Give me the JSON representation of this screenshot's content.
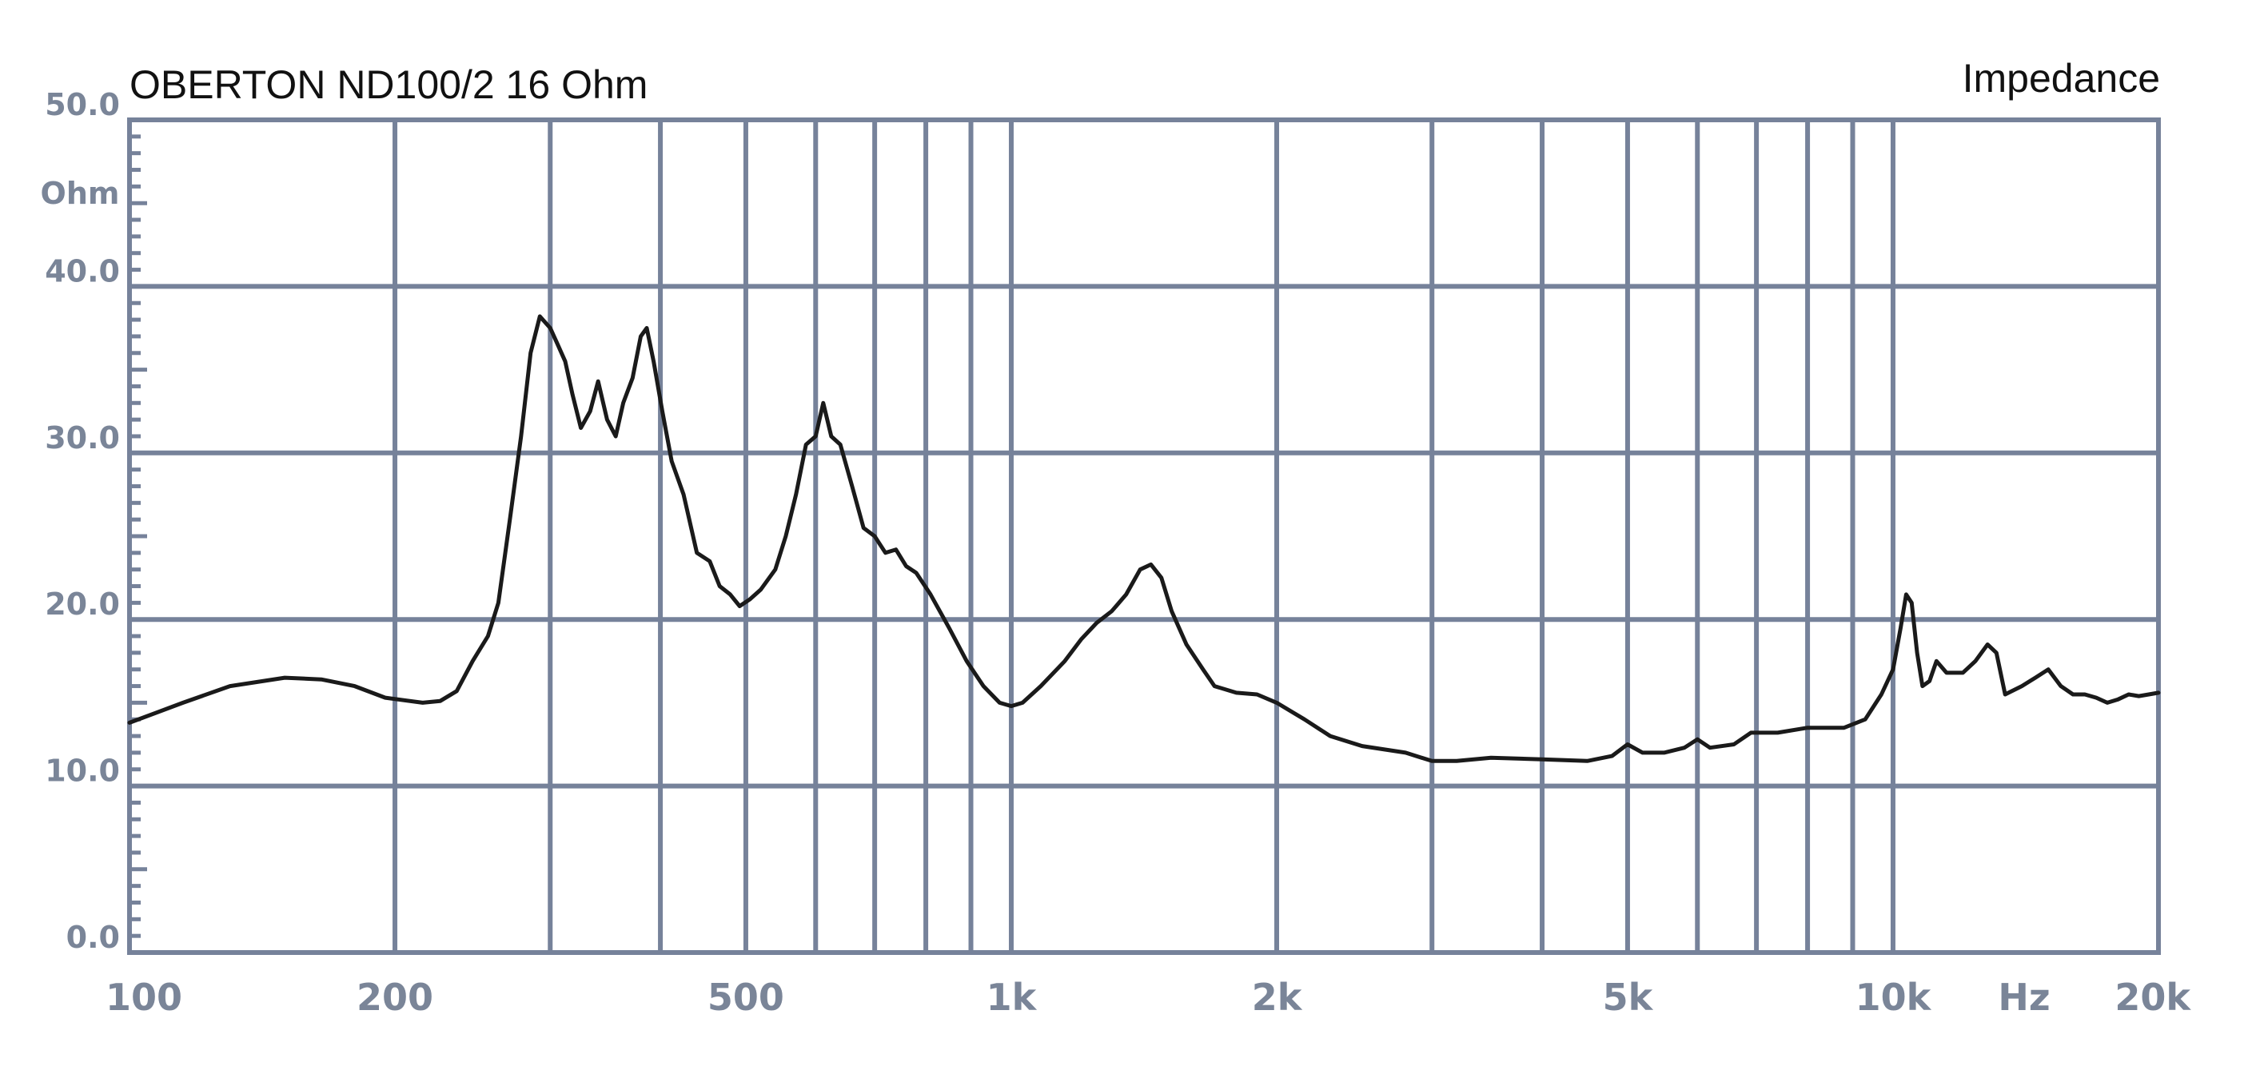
{
  "chart_data": {
    "type": "line",
    "title": "OBERTON  ND100/2  16 Ohm",
    "subtitle": "Impedance",
    "ylabel": "Ohm",
    "xlabel": "Hz",
    "x_scale": "log",
    "xlim": [
      100,
      20000
    ],
    "ylim": [
      0,
      50
    ],
    "grid": true,
    "y_ticks": [
      {
        "value": 0,
        "label": "0.0"
      },
      {
        "value": 10,
        "label": "10.0"
      },
      {
        "value": 20,
        "label": "20.0"
      },
      {
        "value": 30,
        "label": "30.0"
      },
      {
        "value": 40,
        "label": "40.0"
      },
      {
        "value": 50,
        "label": "50.0"
      }
    ],
    "x_grid": [
      200,
      300,
      400,
      500,
      600,
      700,
      800,
      900,
      1000,
      2000,
      3000,
      4000,
      5000,
      6000,
      7000,
      8000,
      9000,
      10000,
      20000
    ],
    "x_ticks": [
      {
        "value": 100,
        "label": "100"
      },
      {
        "value": 200,
        "label": "200"
      },
      {
        "value": 500,
        "label": "500"
      },
      {
        "value": 1000,
        "label": "1k"
      },
      {
        "value": 2000,
        "label": "2k"
      },
      {
        "value": 5000,
        "label": "5k"
      },
      {
        "value": 10000,
        "label": "10k"
      },
      {
        "value": 20000,
        "label": "20k"
      }
    ],
    "series": [
      {
        "color": "#1a1a1a",
        "points": [
          [
            100,
            13.8
          ],
          [
            115,
            15.0
          ],
          [
            130,
            16.0
          ],
          [
            150,
            16.5
          ],
          [
            165,
            16.4
          ],
          [
            180,
            16.0
          ],
          [
            195,
            15.3
          ],
          [
            215,
            15.0
          ],
          [
            225,
            15.1
          ],
          [
            235,
            15.7
          ],
          [
            245,
            17.5
          ],
          [
            255,
            19.0
          ],
          [
            262,
            21.0
          ],
          [
            270,
            26.0
          ],
          [
            278,
            31.0
          ],
          [
            285,
            36.0
          ],
          [
            292,
            38.2
          ],
          [
            300,
            37.5
          ],
          [
            306,
            36.5
          ],
          [
            312,
            35.5
          ],
          [
            318,
            33.5
          ],
          [
            325,
            31.5
          ],
          [
            333,
            32.5
          ],
          [
            340,
            34.3
          ],
          [
            348,
            32.0
          ],
          [
            356,
            31.0
          ],
          [
            363,
            33.0
          ],
          [
            372,
            34.5
          ],
          [
            380,
            37.0
          ],
          [
            386,
            37.5
          ],
          [
            393,
            35.5
          ],
          [
            402,
            32.5
          ],
          [
            412,
            29.5
          ],
          [
            425,
            27.5
          ],
          [
            440,
            24.0
          ],
          [
            455,
            23.5
          ],
          [
            467,
            22.0
          ],
          [
            480,
            21.5
          ],
          [
            492,
            20.8
          ],
          [
            505,
            21.2
          ],
          [
            520,
            21.8
          ],
          [
            540,
            23.0
          ],
          [
            555,
            25.0
          ],
          [
            570,
            27.5
          ],
          [
            585,
            30.5
          ],
          [
            600,
            31.0
          ],
          [
            612,
            33.0
          ],
          [
            625,
            31.0
          ],
          [
            640,
            30.5
          ],
          [
            660,
            28.0
          ],
          [
            680,
            25.5
          ],
          [
            700,
            25.0
          ],
          [
            720,
            24.0
          ],
          [
            740,
            24.2
          ],
          [
            760,
            23.2
          ],
          [
            780,
            22.8
          ],
          [
            810,
            21.5
          ],
          [
            850,
            19.5
          ],
          [
            890,
            17.5
          ],
          [
            930,
            16.0
          ],
          [
            970,
            15.0
          ],
          [
            1000,
            14.8
          ],
          [
            1030,
            15.0
          ],
          [
            1080,
            16.0
          ],
          [
            1150,
            17.5
          ],
          [
            1200,
            18.8
          ],
          [
            1250,
            19.8
          ],
          [
            1300,
            20.5
          ],
          [
            1350,
            21.5
          ],
          [
            1400,
            23.0
          ],
          [
            1440,
            23.3
          ],
          [
            1480,
            22.5
          ],
          [
            1520,
            20.5
          ],
          [
            1580,
            18.5
          ],
          [
            1650,
            17.0
          ],
          [
            1700,
            16.0
          ],
          [
            1800,
            15.6
          ],
          [
            1900,
            15.5
          ],
          [
            2000,
            15.0
          ],
          [
            2150,
            14.0
          ],
          [
            2300,
            13.0
          ],
          [
            2500,
            12.4
          ],
          [
            2800,
            12.0
          ],
          [
            3000,
            11.5
          ],
          [
            3200,
            11.5
          ],
          [
            3500,
            11.7
          ],
          [
            4000,
            11.6
          ],
          [
            4500,
            11.5
          ],
          [
            4800,
            11.8
          ],
          [
            5000,
            12.5
          ],
          [
            5200,
            12.0
          ],
          [
            5500,
            12.0
          ],
          [
            5800,
            12.3
          ],
          [
            6000,
            12.8
          ],
          [
            6200,
            12.3
          ],
          [
            6600,
            12.5
          ],
          [
            6900,
            13.2
          ],
          [
            7400,
            13.2
          ],
          [
            8000,
            13.5
          ],
          [
            8800,
            13.5
          ],
          [
            9300,
            14.0
          ],
          [
            9700,
            15.5
          ],
          [
            10000,
            17.0
          ],
          [
            10200,
            19.5
          ],
          [
            10350,
            21.5
          ],
          [
            10500,
            21.0
          ],
          [
            10650,
            18.0
          ],
          [
            10800,
            16.0
          ],
          [
            11000,
            16.3
          ],
          [
            11200,
            17.5
          ],
          [
            11500,
            16.8
          ],
          [
            12000,
            16.8
          ],
          [
            12400,
            17.5
          ],
          [
            12800,
            18.5
          ],
          [
            13100,
            18.0
          ],
          [
            13400,
            15.5
          ],
          [
            14000,
            16.0
          ],
          [
            14500,
            16.5
          ],
          [
            15000,
            17.0
          ],
          [
            15500,
            16.0
          ],
          [
            16000,
            15.5
          ],
          [
            16500,
            15.5
          ],
          [
            17000,
            15.3
          ],
          [
            17500,
            15.0
          ],
          [
            18000,
            15.2
          ],
          [
            18500,
            15.5
          ],
          [
            19000,
            15.4
          ],
          [
            19500,
            15.5
          ],
          [
            20000,
            15.6
          ]
        ]
      }
    ]
  }
}
